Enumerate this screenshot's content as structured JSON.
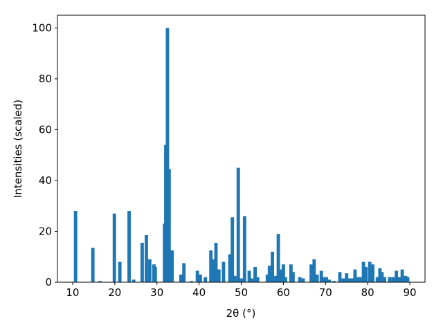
{
  "chart_data": {
    "type": "bar",
    "xlabel": "2θ (°)",
    "ylabel": "Intensities (scaled)",
    "color": "#1f77b4",
    "bar_width": 0.8,
    "x": [
      10.7,
      14.8,
      16.5,
      19.9,
      21.2,
      23.4,
      24.5,
      26.5,
      27.5,
      28.3,
      29.3,
      29.6,
      31.8,
      32.1,
      32.5,
      32.9,
      33.6,
      35.7,
      36.4,
      38.2,
      39.6,
      40.3,
      41.5,
      42.8,
      43.5,
      44.0,
      44.7,
      45.8,
      47.3,
      47.9,
      48.5,
      49.3,
      50.0,
      50.8,
      51.9,
      52.5,
      53.3,
      53.9,
      56.2,
      56.7,
      57.4,
      58.2,
      58.8,
      59.3,
      60.0,
      60.5,
      61.8,
      62.3,
      63.9,
      64.7,
      66.6,
      67.3,
      68.0,
      69.0,
      69.6,
      70.2,
      70.9,
      72.0,
      73.4,
      74.2,
      75.0,
      75.6,
      76.3,
      77.0,
      77.6,
      78.2,
      79.0,
      79.6,
      80.5,
      81.2,
      82.3,
      82.9,
      83.4,
      84.0,
      85.2,
      86.0,
      86.8,
      87.5,
      88.2,
      89.0,
      89.5
    ],
    "values": [
      28,
      13.5,
      0.5,
      27,
      8,
      28,
      1,
      15.5,
      18.5,
      9,
      7,
      6,
      23,
      54,
      100,
      44.5,
      12.5,
      3,
      7.5,
      0.5,
      4.5,
      3,
      2,
      12.5,
      9,
      15.5,
      5,
      8,
      11,
      25.5,
      2.5,
      45,
      1.5,
      26,
      4.5,
      1.5,
      6,
      2,
      3,
      6.5,
      12,
      2.5,
      19,
      5,
      7,
      2,
      7,
      4,
      2,
      1.5,
      7,
      9,
      3,
      4.5,
      2,
      2,
      1,
      0.5,
      4,
      1.5,
      3.5,
      1.5,
      1.5,
      5,
      2,
      2,
      8,
      6,
      8,
      7,
      2,
      5.5,
      4,
      2,
      2,
      2,
      4.5,
      2,
      5,
      2.5,
      2
    ],
    "xlim": [
      6.4,
      93.6
    ],
    "ylim": [
      0,
      105
    ],
    "xticks": [
      10,
      20,
      30,
      40,
      50,
      60,
      70,
      80,
      90
    ],
    "yticks": [
      0,
      20,
      40,
      60,
      80,
      100
    ]
  }
}
